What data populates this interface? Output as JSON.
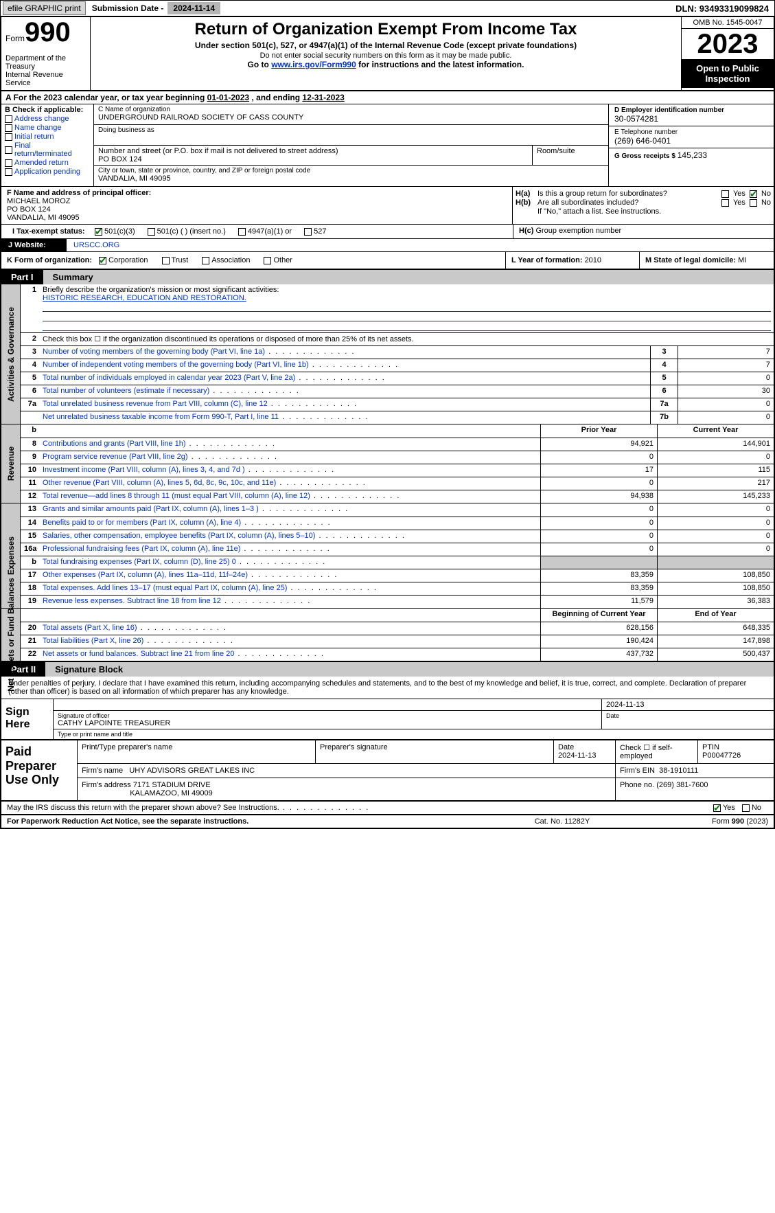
{
  "topbar": {
    "efile": "efile GRAPHIC print",
    "submission_label": "Submission Date - ",
    "submission_date": "2024-11-14",
    "dln_label": "DLN: ",
    "dln": "93493319099824"
  },
  "header": {
    "form_word": "Form",
    "form_num": "990",
    "dept": "Department of the Treasury\nInternal Revenue Service",
    "title": "Return of Organization Exempt From Income Tax",
    "sub": "Under section 501(c), 527, or 4947(a)(1) of the Internal Revenue Code (except private foundations)",
    "note": "Do not enter social security numbers on this form as it may be made public.",
    "goto_pre": "Go to ",
    "goto_url": "www.irs.gov/Form990",
    "goto_post": " for instructions and the latest information.",
    "omb": "OMB No. 1545-0047",
    "year": "2023",
    "open": "Open to Public Inspection"
  },
  "row_a": {
    "text": "A For the 2023 calendar year, or tax year beginning ",
    "begin": "01-01-2023",
    "mid": "  , and ending ",
    "end": "12-31-2023"
  },
  "col_b": {
    "hdr": "B Check if applicable:",
    "items": [
      "Address change",
      "Name change",
      "Initial return",
      "Final return/terminated",
      "Amended return",
      "Application pending"
    ]
  },
  "col_c": {
    "name_lab": "C Name of organization",
    "name": "UNDERGROUND RAILROAD SOCIETY OF CASS COUNTY",
    "dba_lab": "Doing business as",
    "dba": "",
    "addr_lab": "Number and street (or P.O. box if mail is not delivered to street address)",
    "addr": "PO BOX 124",
    "room_lab": "Room/suite",
    "room": "",
    "city_lab": "City or town, state or province, country, and ZIP or foreign postal code",
    "city": "VANDALIA, MI  49095"
  },
  "col_d": {
    "ein_lab": "D Employer identification number",
    "ein": "30-0574281",
    "tel_lab": "E Telephone number",
    "tel": "(269) 646-0401",
    "gross_lab": "G Gross receipts $ ",
    "gross": "145,233"
  },
  "f_box": {
    "lab": "F  Name and address of principal officer:",
    "name": "MICHAEL MOROZ",
    "addr1": "PO BOX 124",
    "addr2": "VANDALIA, MI  49095"
  },
  "h_box": {
    "ha_lab": "H(a)",
    "ha_txt": "Is this a group return for subordinates?",
    "ha_yes": "Yes",
    "ha_no": "No",
    "hb_lab": "H(b)",
    "hb_txt": "Are all subordinates included?",
    "hb_note": "If \"No,\" attach a list. See instructions.",
    "hc_lab": "H(c)",
    "hc_txt": "Group exemption number"
  },
  "i_box": {
    "lab": "I  Tax-exempt status:",
    "o1": "501(c)(3)",
    "o2": "501(c) (  ) (insert no.)",
    "o3": "4947(a)(1) or",
    "o4": "527"
  },
  "j_box": {
    "lab": "J   Website:",
    "val": "URSCC.ORG"
  },
  "k_box": {
    "lab": "K Form of organization:",
    "o1": "Corporation",
    "o2": "Trust",
    "o3": "Association",
    "o4": "Other"
  },
  "l_box": {
    "lab": "L Year of formation: ",
    "val": "2010"
  },
  "m_box": {
    "lab": "M State of legal domicile: ",
    "val": "MI"
  },
  "part1": {
    "num": "Part I",
    "title": "Summary"
  },
  "mission": {
    "lab": "Briefly describe the organization's mission or most significant activities:",
    "val": "HISTORIC RESEARCH, EDUCATION AND RESTORATION."
  },
  "gov_lines": [
    {
      "n": "2",
      "d": "Check this box ☐  if the organization discontinued its operations or disposed of more than 25% of its net assets."
    },
    {
      "n": "3",
      "d": "Number of voting members of the governing body (Part VI, line 1a)",
      "b": "3",
      "v": "7"
    },
    {
      "n": "4",
      "d": "Number of independent voting members of the governing body (Part VI, line 1b)",
      "b": "4",
      "v": "7"
    },
    {
      "n": "5",
      "d": "Total number of individuals employed in calendar year 2023 (Part V, line 2a)",
      "b": "5",
      "v": "0"
    },
    {
      "n": "6",
      "d": "Total number of volunteers (estimate if necessary)",
      "b": "6",
      "v": "30"
    },
    {
      "n": "7a",
      "d": "Total unrelated business revenue from Part VIII, column (C), line 12",
      "b": "7a",
      "v": "0"
    },
    {
      "n": "",
      "d": "Net unrelated business taxable income from Form 990-T, Part I, line 11",
      "b": "7b",
      "v": "0"
    }
  ],
  "rev_hdr": {
    "prior": "Prior Year",
    "curr": "Current Year"
  },
  "rev_lines": [
    {
      "n": "8",
      "d": "Contributions and grants (Part VIII, line 1h)",
      "p": "94,921",
      "c": "144,901"
    },
    {
      "n": "9",
      "d": "Program service revenue (Part VIII, line 2g)",
      "p": "0",
      "c": "0"
    },
    {
      "n": "10",
      "d": "Investment income (Part VIII, column (A), lines 3, 4, and 7d )",
      "p": "17",
      "c": "115"
    },
    {
      "n": "11",
      "d": "Other revenue (Part VIII, column (A), lines 5, 6d, 8c, 9c, 10c, and 11e)",
      "p": "0",
      "c": "217"
    },
    {
      "n": "12",
      "d": "Total revenue—add lines 8 through 11 (must equal Part VIII, column (A), line 12)",
      "p": "94,938",
      "c": "145,233"
    }
  ],
  "exp_lines": [
    {
      "n": "13",
      "d": "Grants and similar amounts paid (Part IX, column (A), lines 1–3 )",
      "p": "0",
      "c": "0"
    },
    {
      "n": "14",
      "d": "Benefits paid to or for members (Part IX, column (A), line 4)",
      "p": "0",
      "c": "0"
    },
    {
      "n": "15",
      "d": "Salaries, other compensation, employee benefits (Part IX, column (A), lines 5–10)",
      "p": "0",
      "c": "0"
    },
    {
      "n": "16a",
      "d": "Professional fundraising fees (Part IX, column (A), line 11e)",
      "p": "0",
      "c": "0"
    },
    {
      "n": "b",
      "d": "Total fundraising expenses (Part IX, column (D), line 25) 0",
      "p": "GREY",
      "c": "GREY"
    },
    {
      "n": "17",
      "d": "Other expenses (Part IX, column (A), lines 11a–11d, 11f–24e)",
      "p": "83,359",
      "c": "108,850"
    },
    {
      "n": "18",
      "d": "Total expenses. Add lines 13–17 (must equal Part IX, column (A), line 25)",
      "p": "83,359",
      "c": "108,850"
    },
    {
      "n": "19",
      "d": "Revenue less expenses. Subtract line 18 from line 12",
      "p": "11,579",
      "c": "36,383"
    }
  ],
  "na_hdr": {
    "prior": "Beginning of Current Year",
    "curr": "End of Year"
  },
  "na_lines": [
    {
      "n": "20",
      "d": "Total assets (Part X, line 16)",
      "p": "628,156",
      "c": "648,335"
    },
    {
      "n": "21",
      "d": "Total liabilities (Part X, line 26)",
      "p": "190,424",
      "c": "147,898"
    },
    {
      "n": "22",
      "d": "Net assets or fund balances. Subtract line 21 from line 20",
      "p": "437,732",
      "c": "500,437"
    }
  ],
  "part2": {
    "num": "Part II",
    "title": "Signature Block"
  },
  "sig_intro": "Under penalties of perjury, I declare that I have examined this return, including accompanying schedules and statements, and to the best of my knowledge and belief, it is true, correct, and complete. Declaration of preparer (other than officer) is based on all information of which preparer has any knowledge.",
  "sign": {
    "left": "Sign Here",
    "sig_lab": "Signature of officer",
    "date_lab": "Date",
    "date": "2024-11-13",
    "name_lab": "Type or print name and title",
    "name": "CATHY LAPOINTE  TREASURER"
  },
  "paid": {
    "left": "Paid Preparer Use Only",
    "prep_name_lab": "Print/Type preparer's name",
    "prep_sig_lab": "Preparer's signature",
    "prep_date_lab": "Date",
    "prep_date": "2024-11-13",
    "self_lab": "Check ☐ if self-employed",
    "ptin_lab": "PTIN",
    "ptin": "P00047726",
    "firm_name_lab": "Firm's name",
    "firm_name": "UHY ADVISORS GREAT LAKES INC",
    "firm_ein_lab": "Firm's EIN",
    "firm_ein": "38-1910111",
    "firm_addr_lab": "Firm's address",
    "firm_addr1": "7171 STADIUM DRIVE",
    "firm_addr2": "KALAMAZOO, MI  49009",
    "phone_lab": "Phone no.",
    "phone": "(269) 381-7600"
  },
  "discuss": {
    "txt": "May the IRS discuss this return with the preparer shown above? See Instructions.",
    "yes": "Yes",
    "no": "No"
  },
  "footer": {
    "l": "For Paperwork Reduction Act Notice, see the separate instructions.",
    "c": "Cat. No. 11282Y",
    "r_pre": "Form ",
    "r_b": "990",
    "r_post": " (2023)"
  },
  "colors": {
    "link": "#0033cc",
    "grey_bg": "#c9c9c9",
    "btn_bg": "#d6d6d6",
    "check_green": "#0a7a0a"
  }
}
